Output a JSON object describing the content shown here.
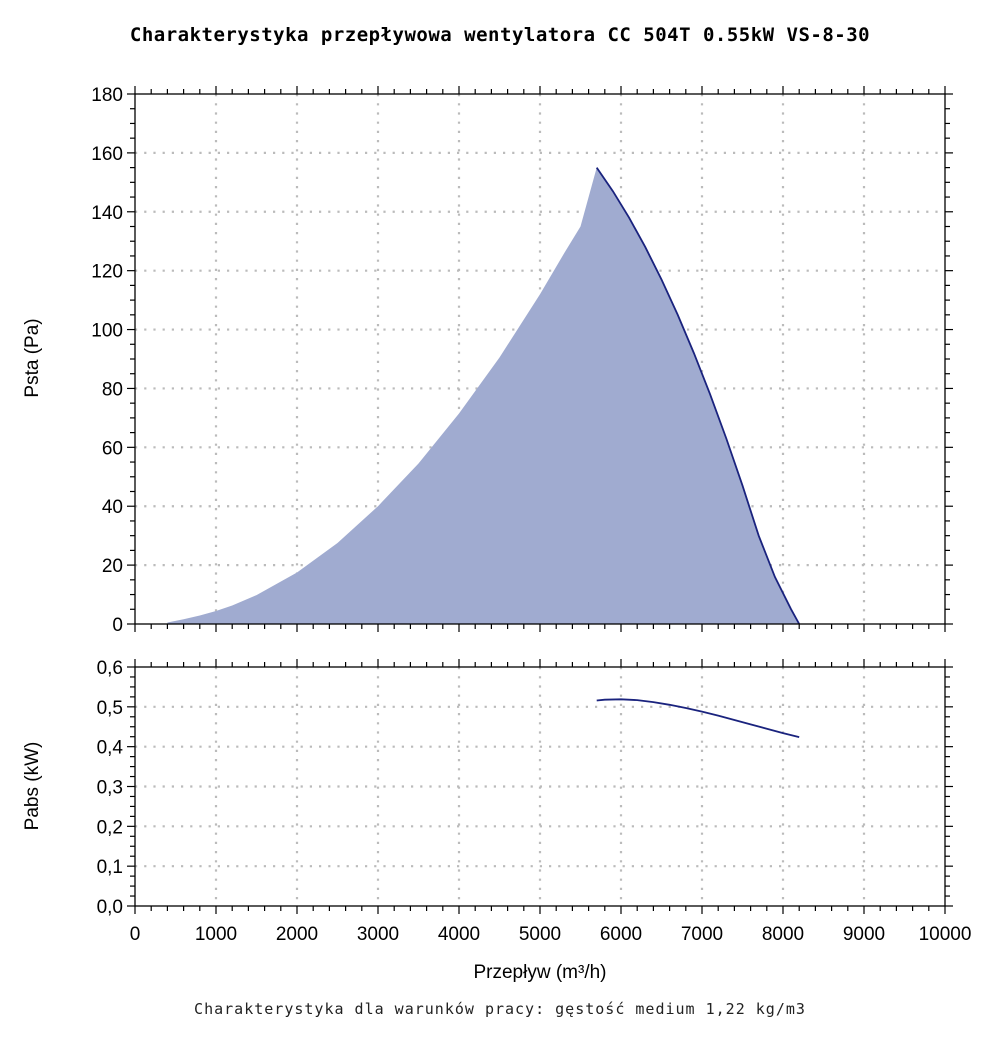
{
  "title": "Charakterystyka przepływowa wentylatora CC 504T 0.55kW VS-8-30",
  "footer": "Charakterystyka dla warunków pracy: gęstość medium 1,22 kg/m3",
  "colors": {
    "fill": "#a0abd0",
    "line": "#1a237e",
    "grid": "#bbbbbb",
    "axis": "#000000"
  },
  "chart_data": [
    {
      "type": "area",
      "xlabel": "",
      "ylabel": "Psta (Pa)",
      "xlim": [
        0,
        10000
      ],
      "ylim": [
        0,
        180
      ],
      "grid": true,
      "y_ticks": [
        "0",
        "20",
        "40",
        "60",
        "80",
        "100",
        "120",
        "140",
        "160",
        "180"
      ],
      "series": [
        {
          "x": [
            400,
            600,
            800,
            1000,
            1200,
            1500,
            2000,
            2500,
            3000,
            3500,
            4000,
            4500,
            5000,
            5300,
            5500,
            5700,
            5900,
            6100,
            6300,
            6500,
            6700,
            6900,
            7100,
            7300,
            7500,
            7700,
            7900,
            8100,
            8200
          ],
          "y": [
            0.5,
            1.6,
            2.9,
            4.4,
            6.3,
            9.8,
            17.5,
            27.5,
            40,
            54.5,
            71.5,
            90.5,
            112,
            126,
            135,
            155,
            147,
            138,
            128,
            117,
            105,
            92,
            78,
            63,
            47,
            30,
            16,
            5,
            0
          ]
        }
      ]
    },
    {
      "type": "line",
      "xlabel": "Przepływ (m³/h)",
      "ylabel": "Pabs (kW)",
      "xlim": [
        0,
        10000
      ],
      "ylim": [
        0,
        0.6
      ],
      "grid": true,
      "x_ticks": [
        "0",
        "1000",
        "2000",
        "3000",
        "4000",
        "5000",
        "6000",
        "7000",
        "8000",
        "9000",
        "10000"
      ],
      "y_ticks": [
        "0,0",
        "0,1",
        "0,2",
        "0,3",
        "0,4",
        "0,5",
        "0,6"
      ],
      "series": [
        {
          "x": [
            5700,
            5800,
            6000,
            6200,
            6400,
            6600,
            6800,
            7000,
            7200,
            7400,
            7600,
            7800,
            8000,
            8200
          ],
          "y": [
            0.516,
            0.518,
            0.519,
            0.517,
            0.512,
            0.505,
            0.497,
            0.488,
            0.478,
            0.467,
            0.456,
            0.445,
            0.434,
            0.424
          ]
        }
      ]
    }
  ]
}
